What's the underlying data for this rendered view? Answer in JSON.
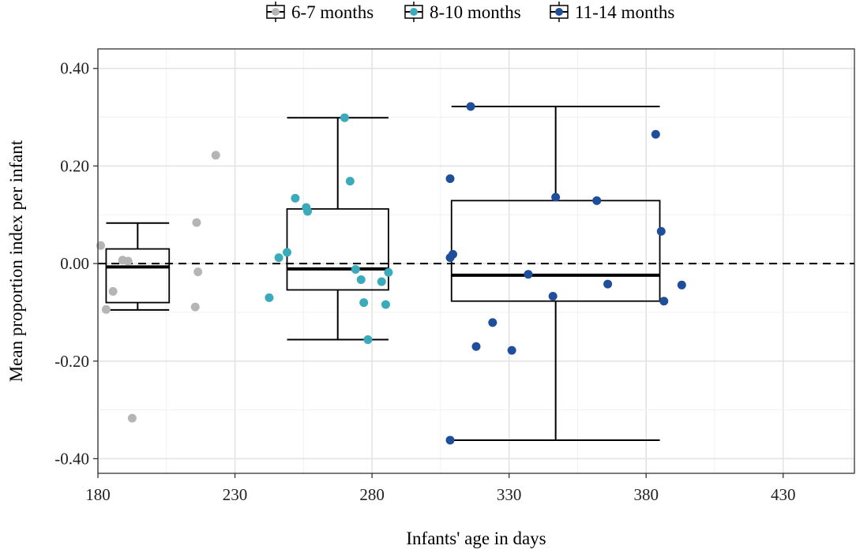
{
  "chart_data": {
    "type": "scatter+boxplot",
    "title": "",
    "xlabel": "Infants' age in days",
    "ylabel": "Mean proportion index per infant",
    "xlim": [
      180,
      456
    ],
    "ylim": [
      -0.43,
      0.44
    ],
    "x_ticks": [
      180,
      230,
      280,
      330,
      380,
      430
    ],
    "x_tick_labels": [
      "180",
      "230",
      "280",
      "330",
      "380",
      "430"
    ],
    "y_ticks": [
      0.4,
      0.2,
      0.0,
      -0.2,
      -0.4
    ],
    "y_tick_labels": [
      "0.40",
      "0.20",
      "0.00",
      "-0.20",
      "-0.40"
    ],
    "grid": true,
    "reference_line": {
      "y": 0.0,
      "style": "dashed"
    },
    "legend": {
      "position": "top"
    },
    "series": [
      {
        "name": "6-7 months",
        "color": "#b5b5b5",
        "box": {
          "x_from": 183,
          "x_to": 206,
          "min": -0.095,
          "q1": -0.08,
          "median": -0.007,
          "q3": 0.03,
          "max": 0.083
        },
        "points": [
          {
            "x": 181,
            "y": 0.037
          },
          {
            "x": 183,
            "y": -0.094
          },
          {
            "x": 185.5,
            "y": -0.057
          },
          {
            "x": 189,
            "y": 0.007
          },
          {
            "x": 191,
            "y": 0.005
          },
          {
            "x": 192.5,
            "y": -0.317
          },
          {
            "x": 216,
            "y": 0.084
          },
          {
            "x": 216.5,
            "y": -0.017
          },
          {
            "x": 215.5,
            "y": -0.089
          },
          {
            "x": 223,
            "y": 0.222
          }
        ]
      },
      {
        "name": "8-10 months",
        "color": "#3aabba",
        "box": {
          "x_from": 249,
          "x_to": 286,
          "min": -0.156,
          "q1": -0.054,
          "median": -0.011,
          "q3": 0.112,
          "max": 0.299
        },
        "points": [
          {
            "x": 242.5,
            "y": -0.07
          },
          {
            "x": 246,
            "y": 0.012
          },
          {
            "x": 249,
            "y": 0.023
          },
          {
            "x": 252,
            "y": 0.134
          },
          {
            "x": 256,
            "y": 0.115
          },
          {
            "x": 256.5,
            "y": 0.107
          },
          {
            "x": 270,
            "y": 0.299
          },
          {
            "x": 272,
            "y": 0.169
          },
          {
            "x": 274,
            "y": -0.012
          },
          {
            "x": 276,
            "y": -0.033
          },
          {
            "x": 277,
            "y": -0.08
          },
          {
            "x": 278.5,
            "y": -0.156
          },
          {
            "x": 283.5,
            "y": -0.037
          },
          {
            "x": 285,
            "y": -0.084
          },
          {
            "x": 286,
            "y": -0.018
          }
        ]
      },
      {
        "name": "11-14 months",
        "color": "#1f4e9a",
        "box": {
          "x_from": 309,
          "x_to": 385,
          "min": -0.362,
          "q1": -0.077,
          "median": -0.024,
          "q3": 0.129,
          "max": 0.322
        },
        "points": [
          {
            "x": 308.5,
            "y": 0.174
          },
          {
            "x": 308.5,
            "y": 0.012
          },
          {
            "x": 309.5,
            "y": 0.019
          },
          {
            "x": 308.5,
            "y": -0.362
          },
          {
            "x": 316,
            "y": 0.322
          },
          {
            "x": 318,
            "y": -0.17
          },
          {
            "x": 324,
            "y": -0.121
          },
          {
            "x": 331,
            "y": -0.178
          },
          {
            "x": 337,
            "y": -0.022
          },
          {
            "x": 346,
            "y": -0.067
          },
          {
            "x": 347,
            "y": 0.136
          },
          {
            "x": 362,
            "y": 0.129
          },
          {
            "x": 366,
            "y": -0.042
          },
          {
            "x": 383.5,
            "y": 0.265
          },
          {
            "x": 385.5,
            "y": 0.066
          },
          {
            "x": 386.5,
            "y": -0.077
          },
          {
            "x": 393,
            "y": -0.044
          }
        ]
      }
    ]
  }
}
